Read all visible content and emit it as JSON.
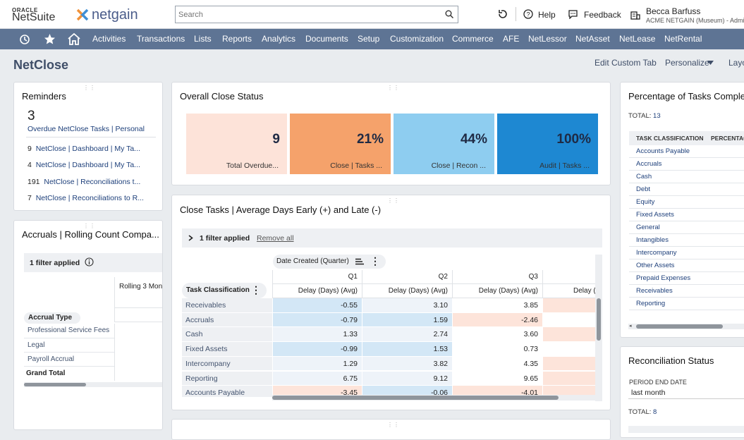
{
  "header": {
    "oracle": "ORACLE",
    "netsuite": "NetSuite",
    "brand": "netgain",
    "search_placeholder": "Search",
    "recent": "Recent",
    "help": "Help",
    "feedback": "Feedback",
    "user_name": "Becca Barfuss",
    "user_sub": "ACME NETGAIN (Museum) - Administ"
  },
  "nav": [
    "Activities",
    "Transactions",
    "Lists",
    "Reports",
    "Analytics",
    "Documents",
    "Setup",
    "Customization",
    "Commerce",
    "AFE",
    "NetLessor",
    "NetAsset",
    "NetLease",
    "NetRental"
  ],
  "page": {
    "title": "NetClose",
    "edit_tab": "Edit Custom Tab",
    "personalize": "Personalize",
    "layout": "Layo"
  },
  "reminders": {
    "title": "Reminders",
    "count": "3",
    "count_label": "Overdue NetClose Tasks | Personal",
    "items": [
      {
        "n": "9",
        "label": "NetClose | Dashboard | My Ta..."
      },
      {
        "n": "4",
        "label": "NetClose | Dashboard | My Ta..."
      },
      {
        "n": "191",
        "label": "NetClose | Reconciliations t..."
      },
      {
        "n": "7",
        "label": "NetClose | Reconciliations to R..."
      }
    ]
  },
  "accruals": {
    "title": "Accruals | Rolling Count Compa...",
    "filter": "1 filter applied",
    "col": "Rolling 3 Mon",
    "row_header": "Accrual Type",
    "rows": [
      "Professional Service Fees",
      "Legal",
      "Payroll Accrual"
    ],
    "total": "Grand Total"
  },
  "overall": {
    "title": "Overall Close Status",
    "tiles": [
      {
        "value": "9",
        "label": "Total Overdue...",
        "color": "#fde3d9"
      },
      {
        "value": "21%",
        "label": "Close | Tasks ...",
        "color": "#f5a26b"
      },
      {
        "value": "44%",
        "label": "Close | Recon ...",
        "color": "#8ecdf0"
      },
      {
        "value": "100%",
        "label": "Audit | Tasks ...",
        "color": "#1e88d2"
      }
    ]
  },
  "close_tasks": {
    "title": "Close Tasks | Average Days Early (+) and Late (-)",
    "filter": "1 filter applied",
    "remove": "Remove all",
    "date_col": "Date Created (Quarter)",
    "row_header": "Task Classification",
    "quarters": [
      "Q1",
      "Q2",
      "Q3"
    ],
    "metric": "Delay (Days) (Avg)",
    "metric_partial": "Delay (",
    "rows": [
      {
        "name": "Receivables",
        "q1": "-0.55",
        "q2": "3.10",
        "q3": "3.85"
      },
      {
        "name": "Accruals",
        "q1": "-0.79",
        "q2": "1.59",
        "q3": "-2.46"
      },
      {
        "name": "Cash",
        "q1": "1.33",
        "q2": "2.74",
        "q3": "3.60"
      },
      {
        "name": "Fixed Assets",
        "q1": "-0.99",
        "q2": "1.53",
        "q3": "0.73"
      },
      {
        "name": "Intercompany",
        "q1": "1.29",
        "q2": "3.82",
        "q3": "4.35"
      },
      {
        "name": "Reporting",
        "q1": "6.75",
        "q2": "9.12",
        "q3": "9.65"
      },
      {
        "name": "Accounts Payable",
        "q1": "-3.45",
        "q2": "-0.06",
        "q3": "-4.01"
      }
    ]
  },
  "pct": {
    "title": "Percentage of Tasks Complete",
    "total_label": "TOTAL:",
    "total": "13",
    "col1": "TASK CLASSIFICATION",
    "col2": "PERCENTAGE",
    "rows": [
      "Accounts Payable",
      "Accruals",
      "Cash",
      "Debt",
      "Equity",
      "Fixed Assets",
      "General",
      "Intangibles",
      "Intercompany",
      "Other Assets",
      "Prepaid Expenses",
      "Receivables",
      "Reporting"
    ]
  },
  "recon": {
    "title": "Reconciliation Status",
    "period_label": "PERIOD END DATE",
    "period_value": "last month",
    "total_label": "TOTAL:",
    "total": "8"
  }
}
